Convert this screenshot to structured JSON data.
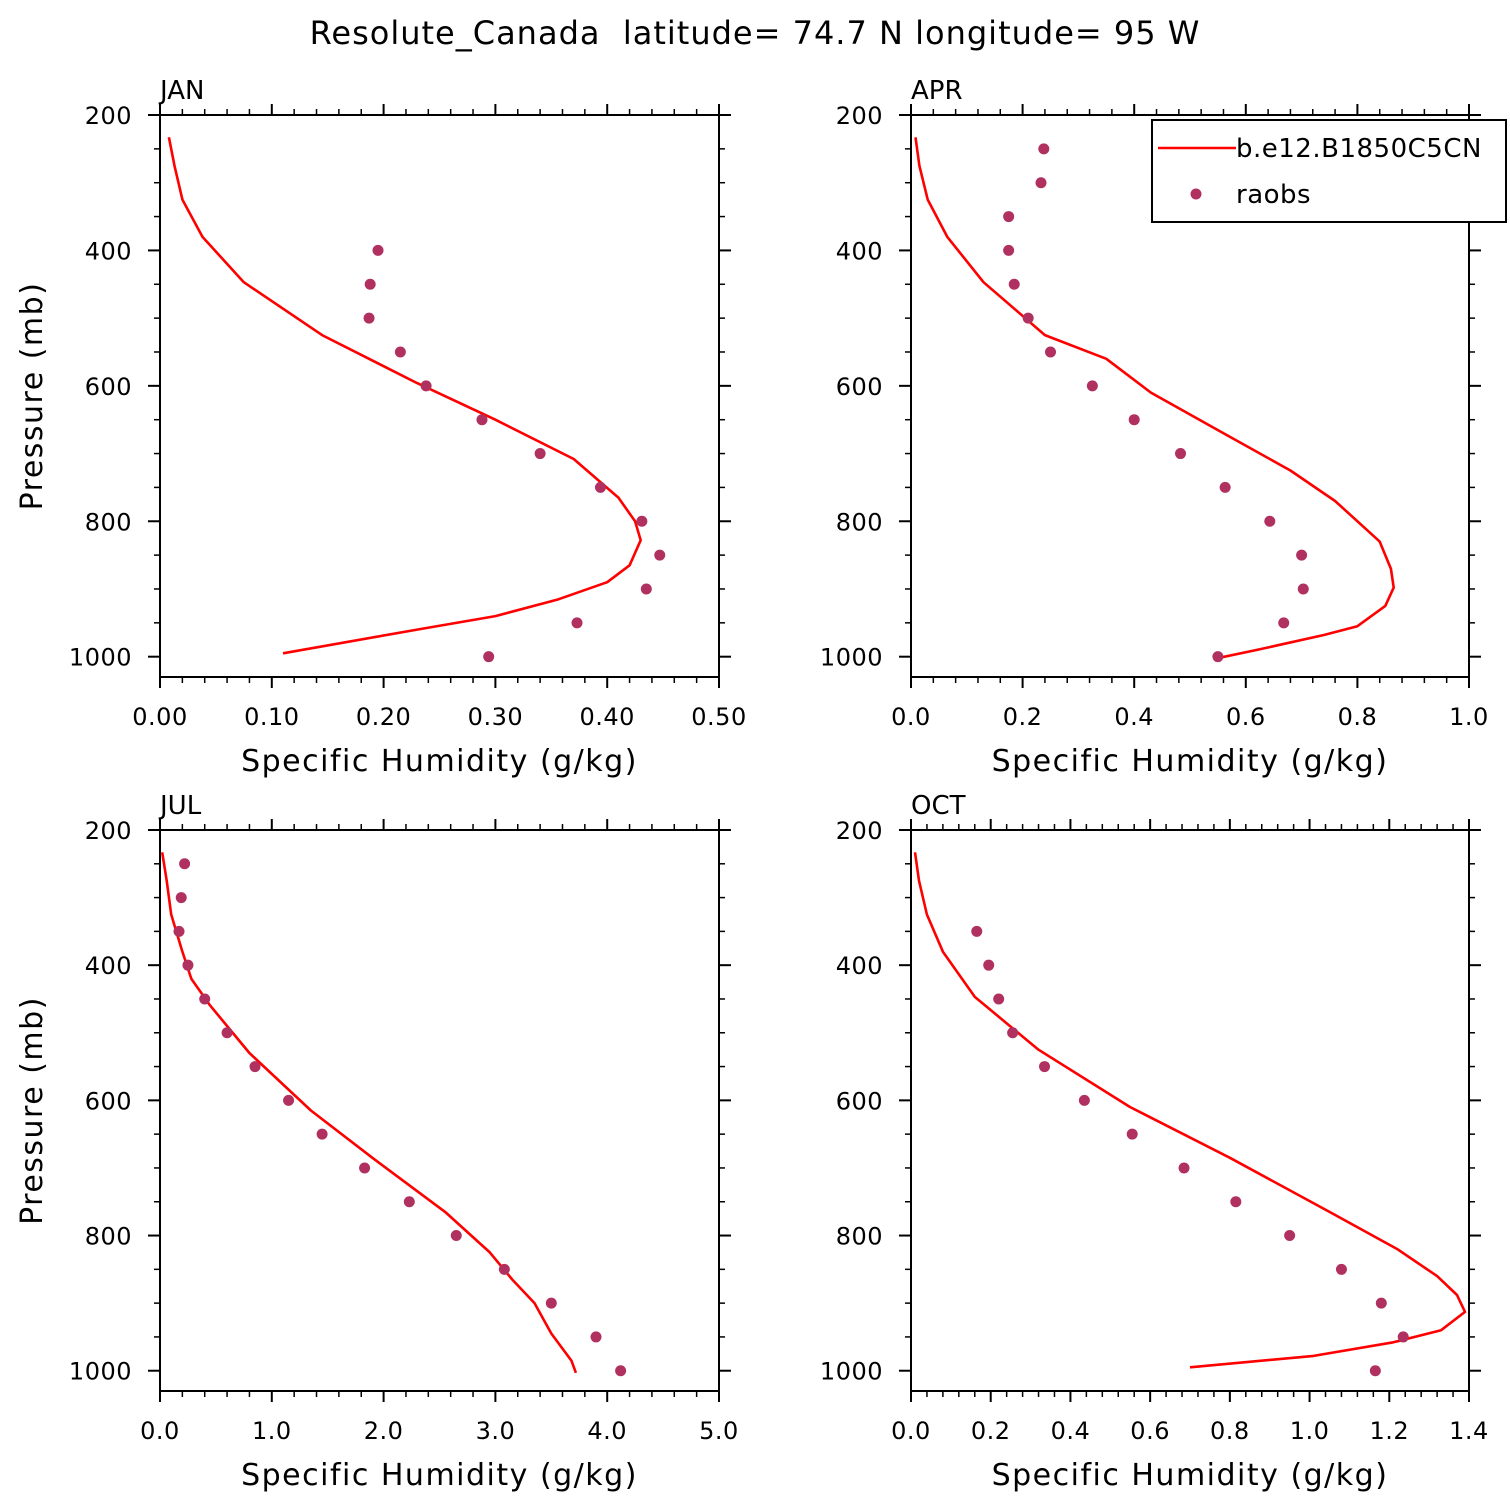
{
  "title": "Resolute_Canada  latitude= 74.7 N longitude= 95 W",
  "colors": {
    "model_line": "#ff0000",
    "obs_marker": "#b03060",
    "axes": "#000000"
  },
  "legend": {
    "entries": [
      {
        "label": "b.e12.B1850C5CN",
        "style": "line",
        "color": "#ff0000"
      },
      {
        "label": "raobs",
        "style": "marker",
        "color": "#b03060"
      }
    ],
    "placement": "top-right of APR panel"
  },
  "chart_data": [
    {
      "type": "line",
      "panel_label": "JAN",
      "xlabel": "Specific Humidity (g/kg)",
      "ylabel": "Pressure (mb)",
      "xlim": [
        0.0,
        0.5
      ],
      "ylim": [
        1030,
        200
      ],
      "y_inverted": true,
      "x_ticks": [
        0.0,
        0.1,
        0.2,
        0.3,
        0.4,
        0.5
      ],
      "x_tick_labels": [
        "0.00",
        "0.10",
        "0.20",
        "0.30",
        "0.40",
        "0.50"
      ],
      "y_ticks": [
        200,
        400,
        600,
        800,
        1000
      ],
      "y_tick_labels": [
        "200",
        "400",
        "600",
        "800",
        "1000"
      ],
      "series": [
        {
          "name": "b.e12.B1850C5CN",
          "style": "line",
          "x": [
            0.008,
            0.013,
            0.02,
            0.038,
            0.075,
            0.145,
            0.23,
            0.3,
            0.37,
            0.41,
            0.425,
            0.43,
            0.42,
            0.4,
            0.355,
            0.3,
            0.23,
            0.11
          ],
          "y": [
            233,
            275,
            325,
            380,
            447,
            525,
            596,
            650,
            708,
            765,
            800,
            828,
            865,
            890,
            916,
            940,
            960,
            995
          ]
        },
        {
          "name": "raobs",
          "style": "marker",
          "x": [
            0.195,
            0.188,
            0.187,
            0.215,
            0.238,
            0.288,
            0.34,
            0.394,
            0.431,
            0.447,
            0.435,
            0.373,
            0.294
          ],
          "y": [
            400,
            450,
            500,
            550,
            600,
            650,
            700,
            750,
            800,
            850,
            900,
            950,
            1000
          ]
        }
      ]
    },
    {
      "type": "line",
      "panel_label": "APR",
      "xlabel": "Specific Humidity (g/kg)",
      "ylabel": "",
      "xlim": [
        0.0,
        1.0
      ],
      "ylim": [
        1030,
        200
      ],
      "y_inverted": true,
      "x_ticks": [
        0.0,
        0.2,
        0.4,
        0.6,
        0.8,
        1.0
      ],
      "x_tick_labels": [
        "0.0",
        "0.2",
        "0.4",
        "0.6",
        "0.8",
        "1.0"
      ],
      "y_ticks": [
        200,
        400,
        600,
        800,
        1000
      ],
      "y_tick_labels": [
        "200",
        "400",
        "600",
        "800",
        "1000"
      ],
      "series": [
        {
          "name": "b.e12.B1850C5CN",
          "style": "line",
          "x": [
            0.008,
            0.015,
            0.03,
            0.065,
            0.13,
            0.24,
            0.35,
            0.43,
            0.56,
            0.68,
            0.76,
            0.84,
            0.86,
            0.865,
            0.85,
            0.8,
            0.74,
            0.62,
            0.545
          ],
          "y": [
            233,
            275,
            325,
            380,
            447,
            525,
            560,
            610,
            670,
            725,
            770,
            830,
            870,
            898,
            925,
            955,
            968,
            990,
            1003
          ]
        },
        {
          "name": "raobs",
          "style": "marker",
          "x": [
            0.238,
            0.233,
            0.175,
            0.175,
            0.185,
            0.21,
            0.25,
            0.325,
            0.4,
            0.483,
            0.563,
            0.643,
            0.7,
            0.703,
            0.668,
            0.55
          ],
          "y": [
            250,
            300,
            350,
            400,
            450,
            500,
            550,
            600,
            650,
            700,
            750,
            800,
            850,
            900,
            950,
            1000
          ]
        }
      ]
    },
    {
      "type": "line",
      "panel_label": "JUL",
      "xlabel": "Specific Humidity (g/kg)",
      "ylabel": "Pressure (mb)",
      "xlim": [
        0.0,
        5.0
      ],
      "ylim": [
        1030,
        200
      ],
      "y_inverted": true,
      "x_ticks": [
        0.0,
        1.0,
        2.0,
        3.0,
        4.0,
        5.0
      ],
      "x_tick_labels": [
        "0.0",
        "1.0",
        "2.0",
        "3.0",
        "4.0",
        "5.0"
      ],
      "y_ticks": [
        200,
        400,
        600,
        800,
        1000
      ],
      "y_tick_labels": [
        "200",
        "400",
        "600",
        "800",
        "1000"
      ],
      "series": [
        {
          "name": "b.e12.B1850C5CN",
          "style": "line",
          "x": [
            0.02,
            0.06,
            0.1,
            0.2,
            0.28,
            0.45,
            0.8,
            1.35,
            1.9,
            2.55,
            2.95,
            3.15,
            3.35,
            3.5,
            3.68,
            3.72
          ],
          "y": [
            233,
            275,
            325,
            380,
            420,
            460,
            530,
            615,
            685,
            765,
            825,
            865,
            900,
            945,
            985,
            1003
          ]
        },
        {
          "name": "raobs",
          "style": "marker",
          "x": [
            0.22,
            0.19,
            0.17,
            0.25,
            0.4,
            0.6,
            0.85,
            1.15,
            1.45,
            1.83,
            2.23,
            2.65,
            3.08,
            3.5,
            3.9,
            4.12
          ],
          "y": [
            250,
            300,
            350,
            400,
            450,
            500,
            550,
            600,
            650,
            700,
            750,
            800,
            850,
            900,
            950,
            1000
          ]
        }
      ]
    },
    {
      "type": "line",
      "panel_label": "OCT",
      "xlabel": "Specific Humidity (g/kg)",
      "ylabel": "",
      "xlim": [
        0.0,
        1.4
      ],
      "ylim": [
        1030,
        200
      ],
      "y_inverted": true,
      "x_ticks": [
        0.0,
        0.2,
        0.4,
        0.6,
        0.8,
        1.0,
        1.2,
        1.4
      ],
      "x_tick_labels": [
        "0.0",
        "0.2",
        "0.4",
        "0.6",
        "0.8",
        "1.0",
        "1.2",
        "1.4"
      ],
      "y_ticks": [
        200,
        400,
        600,
        800,
        1000
      ],
      "y_tick_labels": [
        "200",
        "400",
        "600",
        "800",
        "1000"
      ],
      "series": [
        {
          "name": "b.e12.B1850C5CN",
          "style": "line",
          "x": [
            0.01,
            0.02,
            0.04,
            0.08,
            0.16,
            0.32,
            0.55,
            0.8,
            1.05,
            1.22,
            1.32,
            1.37,
            1.39,
            1.33,
            1.21,
            1.01,
            0.7
          ],
          "y": [
            233,
            275,
            325,
            380,
            447,
            525,
            610,
            685,
            765,
            820,
            860,
            888,
            913,
            940,
            958,
            978,
            995
          ]
        },
        {
          "name": "raobs",
          "style": "marker",
          "x": [
            0.165,
            0.195,
            0.22,
            0.255,
            0.335,
            0.435,
            0.555,
            0.685,
            0.815,
            0.95,
            1.08,
            1.18,
            1.235,
            1.165
          ],
          "y": [
            350,
            400,
            450,
            500,
            550,
            600,
            650,
            700,
            750,
            800,
            850,
            900,
            950,
            1000
          ]
        }
      ]
    }
  ]
}
